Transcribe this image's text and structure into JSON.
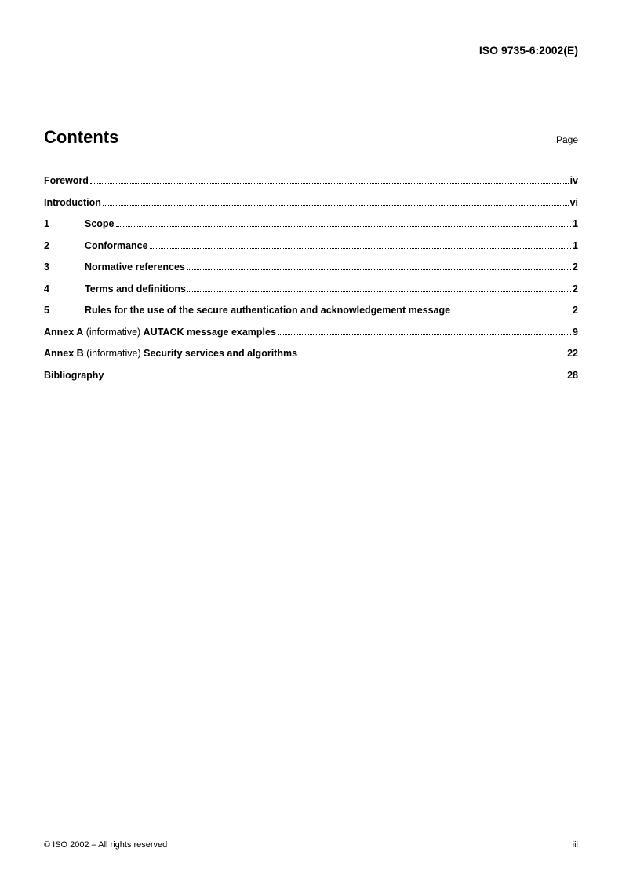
{
  "header": {
    "doc_id": "ISO 9735-6:2002(E)"
  },
  "contents": {
    "title": "Contents",
    "page_label": "Page"
  },
  "toc": {
    "foreword": {
      "label": "Foreword",
      "page": "iv"
    },
    "introduction": {
      "label": "Introduction",
      "page": "vi"
    },
    "items": [
      {
        "num": "1",
        "label": "Scope",
        "page": "1"
      },
      {
        "num": "2",
        "label": "Conformance",
        "page": "1"
      },
      {
        "num": "3",
        "label": "Normative references",
        "page": "2"
      },
      {
        "num": "4",
        "label": "Terms and definitions",
        "page": "2"
      },
      {
        "num": "5",
        "label": "Rules for the use of the secure authentication and acknowledgement message",
        "page": "2"
      }
    ],
    "annexes": [
      {
        "prefix": "Annex A",
        "info": " (informative)  ",
        "title": "AUTACK message examples",
        "page": "9"
      },
      {
        "prefix": "Annex B",
        "info": " (informative)  ",
        "title": "Security services and algorithms",
        "page": "22"
      }
    ],
    "bibliography": {
      "label": "Bibliography",
      "page": "28"
    }
  },
  "footer": {
    "copyright": "© ISO 2002 – All rights reserved",
    "page_num": "iii"
  }
}
